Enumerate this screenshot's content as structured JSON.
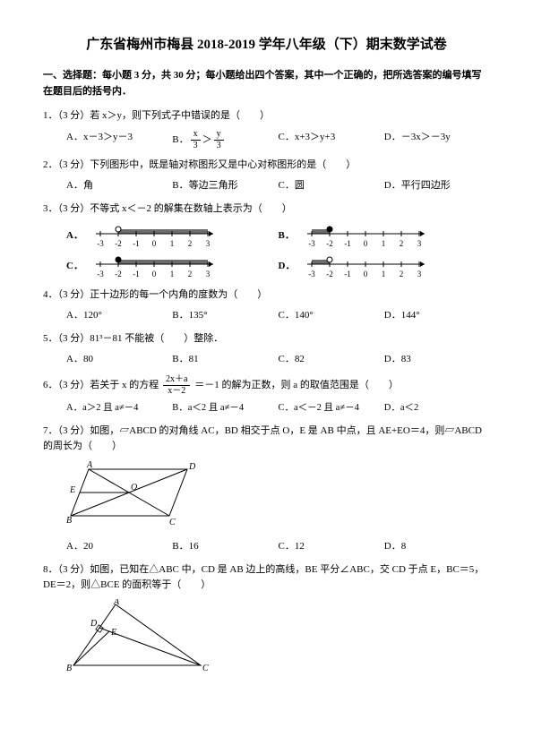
{
  "title": "广东省梅州市梅县 2018-2019 学年八年级（下）期末数学试卷",
  "section1": "一、选择题：每小题 3 分，共 30 分；每小题给出四个答案，其中一个正确的，把所选答案的编号填写在题目后的括号内．",
  "q1": {
    "text": "1．（3 分）若 x＞y，则下列式子中错误的是（　　）",
    "A": "A．x－3＞y－3",
    "B_pre": "B．",
    "C": "C．x+3＞y+3",
    "D": "D．－3x＞－3y"
  },
  "q2": {
    "text": "2．（3 分）下列图形中，既是轴对称图形又是中心对称图形的是（　　）",
    "A": "A．角",
    "B": "B．等边三角形",
    "C": "C．圆",
    "D": "D．平行四边形"
  },
  "q3": {
    "text": "3．（3 分）不等式 x＜－2 的解集在数轴上表示为（　　）",
    "ticks": [
      "-3",
      "-2",
      "-1",
      "0",
      "1",
      "2",
      "3"
    ],
    "line_color": "#000000",
    "shade_color": "#6b6b6b"
  },
  "q4": {
    "text": "4．（3 分）正十边形的每一个内角的度数为（　　）",
    "A": "A．120°",
    "B": "B．135°",
    "C": "C．140°",
    "D": "D．144°"
  },
  "q5": {
    "text": "5．（3 分）81³－81 不能被（　　）整除．",
    "A": "A．80",
    "B": "B．81",
    "C": "C．82",
    "D": "D．83"
  },
  "q6": {
    "text_pre": "6．（3 分）若关于 x 的方程",
    "text_post": "＝－1 的解为正数，则 a 的取值范围是（　　）",
    "A": "A．a＞2 且 a≠－4",
    "B": "B．a＜2 且 a≠－4",
    "C": "C．a＜－2 且 a≠－4",
    "D": "D．a＜2"
  },
  "q7": {
    "text": "7．（3 分）如图，▱ABCD 的对角线 AC，BD 相交于点 O，E 是 AB 中点，且 AE+EO＝4，则▱ABCD 的周长为（　　）",
    "A": "A．20",
    "B": "B．16",
    "C": "C．12",
    "D": "D．8"
  },
  "q8": {
    "text": "8．（3 分）如图，已知在△ABC 中，CD 是 AB 边上的高线，BE 平分∠ABC，交 CD 于点 E，BC＝5，DE＝2，则△BCE 的面积等于（　　）"
  }
}
